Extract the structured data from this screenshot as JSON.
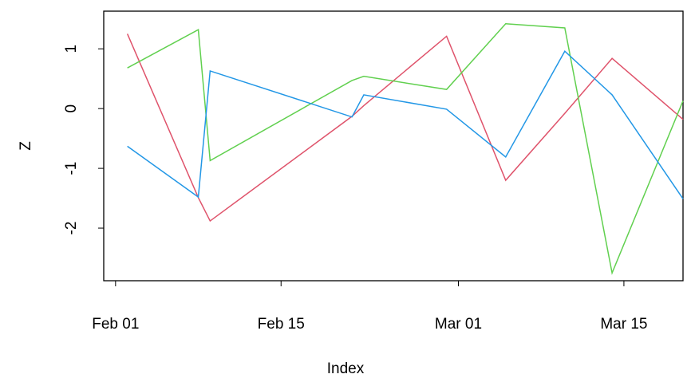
{
  "chart_data": {
    "type": "line",
    "x_label": "Index",
    "y_label": "Z",
    "x": [
      "Feb 02",
      "Feb 08",
      "Feb 09",
      "Feb 21",
      "Feb 22",
      "Feb 29",
      "Mar 05",
      "Mar 10",
      "Mar 14",
      "Mar 20"
    ],
    "series": [
      {
        "color": "#DF536B",
        "values": [
          1.25,
          -1.49,
          -1.88,
          -0.13,
          0.05,
          1.21,
          -1.2,
          -0.08,
          0.84,
          -0.18
        ]
      },
      {
        "color": "#61D04F",
        "values": [
          0.68,
          1.32,
          -0.87,
          0.47,
          0.54,
          0.32,
          1.42,
          1.35,
          -2.75,
          0.13
        ]
      },
      {
        "color": "#2297E6",
        "values": [
          -0.63,
          -1.48,
          0.63,
          -0.14,
          0.23,
          -0.01,
          -0.81,
          0.96,
          0.23,
          -1.51
        ]
      }
    ],
    "xlim": [
      "Jan 31",
      "Mar 20"
    ],
    "xticks": [
      "Feb 01",
      "Feb 15",
      "Mar 01",
      "Mar 15"
    ],
    "ylim": [
      -2.88,
      1.63
    ],
    "yticks": [
      -2,
      -1,
      0,
      1
    ]
  }
}
